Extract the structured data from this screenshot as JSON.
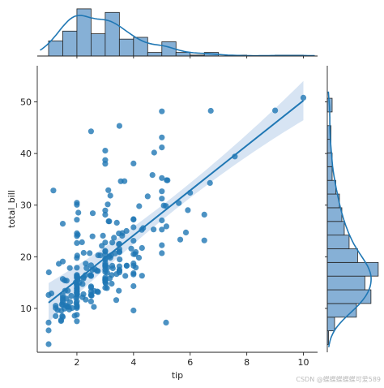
{
  "chart_data": {
    "type": "scatter",
    "title": "",
    "xlabel": "tip",
    "ylabel": "total_bill",
    "xlim": [
      0.6,
      10.5
    ],
    "ylim": [
      1.5,
      57
    ],
    "xticks": [
      2,
      4,
      6,
      8,
      10
    ],
    "yticks": [
      10,
      20,
      30,
      40,
      50
    ],
    "grid": false,
    "colors": {
      "point": "#1f77b4",
      "hist_fill": "#86b0d6",
      "line": "#1f77b4",
      "band": "#c6d9ee"
    },
    "regression": {
      "slope": 4.35,
      "intercept": 6.75,
      "x_range": [
        1,
        10
      ],
      "ci_half_width_at_ends": 3.8,
      "ci_half_width_center": 1.4
    },
    "points": [
      [
        1.01,
        16.99
      ],
      [
        1.66,
        10.34
      ],
      [
        3.5,
        21.01
      ],
      [
        3.31,
        23.68
      ],
      [
        3.61,
        24.59
      ],
      [
        4.71,
        25.29
      ],
      [
        2.0,
        8.77
      ],
      [
        3.12,
        26.88
      ],
      [
        1.96,
        15.04
      ],
      [
        3.23,
        14.78
      ],
      [
        1.71,
        10.27
      ],
      [
        5.0,
        35.26
      ],
      [
        1.57,
        15.42
      ],
      [
        3.0,
        18.43
      ],
      [
        3.02,
        14.83
      ],
      [
        3.92,
        21.58
      ],
      [
        1.67,
        10.33
      ],
      [
        3.71,
        16.29
      ],
      [
        3.5,
        16.97
      ],
      [
        3.35,
        20.65
      ],
      [
        4.08,
        17.92
      ],
      [
        2.75,
        20.29
      ],
      [
        2.23,
        15.77
      ],
      [
        7.58,
        39.42
      ],
      [
        3.18,
        19.82
      ],
      [
        2.34,
        17.81
      ],
      [
        2.0,
        13.37
      ],
      [
        2.0,
        12.69
      ],
      [
        4.3,
        21.7
      ],
      [
        3.0,
        19.65
      ],
      [
        1.45,
        9.55
      ],
      [
        2.5,
        18.35
      ],
      [
        3.0,
        15.06
      ],
      [
        2.45,
        20.69
      ],
      [
        3.27,
        17.78
      ],
      [
        3.6,
        24.06
      ],
      [
        2.0,
        16.31
      ],
      [
        3.07,
        16.93
      ],
      [
        2.31,
        18.69
      ],
      [
        5.0,
        31.27
      ],
      [
        2.24,
        16.04
      ],
      [
        2.54,
        17.46
      ],
      [
        3.06,
        13.94
      ],
      [
        1.32,
        9.68
      ],
      [
        5.6,
        30.4
      ],
      [
        3.0,
        18.29
      ],
      [
        5.0,
        22.23
      ],
      [
        6.0,
        32.4
      ],
      [
        2.05,
        28.55
      ],
      [
        3.0,
        18.04
      ],
      [
        2.5,
        12.54
      ],
      [
        2.6,
        10.29
      ],
      [
        5.2,
        34.81
      ],
      [
        1.56,
        9.94
      ],
      [
        4.34,
        25.56
      ],
      [
        3.51,
        19.49
      ],
      [
        3.0,
        38.01
      ],
      [
        1.5,
        26.41
      ],
      [
        1.76,
        11.24
      ],
      [
        6.73,
        48.27
      ],
      [
        3.21,
        20.29
      ],
      [
        2.0,
        13.81
      ],
      [
        1.98,
        11.02
      ],
      [
        3.76,
        18.29
      ],
      [
        2.64,
        17.59
      ],
      [
        3.15,
        20.08
      ],
      [
        2.47,
        16.45
      ],
      [
        1.0,
        3.07
      ],
      [
        2.01,
        20.23
      ],
      [
        2.09,
        15.01
      ],
      [
        1.97,
        12.02
      ],
      [
        3.0,
        17.07
      ],
      [
        3.14,
        26.86
      ],
      [
        5.0,
        25.28
      ],
      [
        2.2,
        14.73
      ],
      [
        1.25,
        10.51
      ],
      [
        3.08,
        17.92
      ],
      [
        4.0,
        27.2
      ],
      [
        3.0,
        22.76
      ],
      [
        2.71,
        17.29
      ],
      [
        3.0,
        19.44
      ],
      [
        3.4,
        16.66
      ],
      [
        1.83,
        10.07
      ],
      [
        5.0,
        32.68
      ],
      [
        2.03,
        15.98
      ],
      [
        5.17,
        34.83
      ],
      [
        2.0,
        13.03
      ],
      [
        4.0,
        18.28
      ],
      [
        5.85,
        24.71
      ],
      [
        3.0,
        21.16
      ],
      [
        3.0,
        28.97
      ],
      [
        3.5,
        22.49
      ],
      [
        1.0,
        5.75
      ],
      [
        4.3,
        16.32
      ],
      [
        3.25,
        22.75
      ],
      [
        4.73,
        40.17
      ],
      [
        4.0,
        27.28
      ],
      [
        1.5,
        12.03
      ],
      [
        3.0,
        21.01
      ],
      [
        1.5,
        12.46
      ],
      [
        2.5,
        11.35
      ],
      [
        3.0,
        15.38
      ],
      [
        2.5,
        44.3
      ],
      [
        3.48,
        22.42
      ],
      [
        4.08,
        20.92
      ],
      [
        1.64,
        15.36
      ],
      [
        4.06,
        20.49
      ],
      [
        4.29,
        25.21
      ],
      [
        3.76,
        18.24
      ],
      [
        4.0,
        14.31
      ],
      [
        3.0,
        14.0
      ],
      [
        1.0,
        7.25
      ],
      [
        4.0,
        38.07
      ],
      [
        2.55,
        23.95
      ],
      [
        4.0,
        25.71
      ],
      [
        3.5,
        17.31
      ],
      [
        5.07,
        29.93
      ],
      [
        1.5,
        10.65
      ],
      [
        1.8,
        12.43
      ],
      [
        2.92,
        24.08
      ],
      [
        2.31,
        11.69
      ],
      [
        1.68,
        13.42
      ],
      [
        2.5,
        14.26
      ],
      [
        2.0,
        15.95
      ],
      [
        2.52,
        12.48
      ],
      [
        4.2,
        29.8
      ],
      [
        1.48,
        8.52
      ],
      [
        2.0,
        14.52
      ],
      [
        2.0,
        11.38
      ],
      [
        2.18,
        22.82
      ],
      [
        1.5,
        19.08
      ],
      [
        2.83,
        20.27
      ],
      [
        1.5,
        11.17
      ],
      [
        2.0,
        12.26
      ],
      [
        3.25,
        18.26
      ],
      [
        1.25,
        8.51
      ],
      [
        2.0,
        10.33
      ],
      [
        2.0,
        14.15
      ],
      [
        2.0,
        16.0
      ],
      [
        2.75,
        13.16
      ],
      [
        3.5,
        17.47
      ],
      [
        6.7,
        34.3
      ],
      [
        5.0,
        41.19
      ],
      [
        5.0,
        27.05
      ],
      [
        2.3,
        16.43
      ],
      [
        1.5,
        8.35
      ],
      [
        1.36,
        18.64
      ],
      [
        1.63,
        11.87
      ],
      [
        1.73,
        9.78
      ],
      [
        2.0,
        7.51
      ],
      [
        2.5,
        14.07
      ],
      [
        2.0,
        13.13
      ],
      [
        2.74,
        17.26
      ],
      [
        2.0,
        24.55
      ],
      [
        2.0,
        19.77
      ],
      [
        5.14,
        29.85
      ],
      [
        5.0,
        48.17
      ],
      [
        3.75,
        25.0
      ],
      [
        2.61,
        13.39
      ],
      [
        2.0,
        16.49
      ],
      [
        3.5,
        21.5
      ],
      [
        2.5,
        12.66
      ],
      [
        2.0,
        16.21
      ],
      [
        2.0,
        13.81
      ],
      [
        3.0,
        17.51
      ],
      [
        3.48,
        24.52
      ],
      [
        2.24,
        20.76
      ],
      [
        4.5,
        31.71
      ],
      [
        1.61,
        10.59
      ],
      [
        2.0,
        10.63
      ],
      [
        10.0,
        50.81
      ],
      [
        3.16,
        15.81
      ],
      [
        5.15,
        7.25
      ],
      [
        3.18,
        31.85
      ],
      [
        4.0,
        16.82
      ],
      [
        3.11,
        32.9
      ],
      [
        2.0,
        17.89
      ],
      [
        2.0,
        14.48
      ],
      [
        4.0,
        9.6
      ],
      [
        3.55,
        34.63
      ],
      [
        3.68,
        34.65
      ],
      [
        5.65,
        23.33
      ],
      [
        3.5,
        45.35
      ],
      [
        6.5,
        23.17
      ],
      [
        3.0,
        40.55
      ],
      [
        5.0,
        20.69
      ],
      [
        3.5,
        20.9
      ],
      [
        2.0,
        30.46
      ],
      [
        3.5,
        18.15
      ],
      [
        4.0,
        23.1
      ],
      [
        1.5,
        15.69
      ],
      [
        4.19,
        19.81
      ],
      [
        2.56,
        28.44
      ],
      [
        2.02,
        15.48
      ],
      [
        4.0,
        16.58
      ],
      [
        1.44,
        7.56
      ],
      [
        2.0,
        10.34
      ],
      [
        5.0,
        43.11
      ],
      [
        2.0,
        13.0
      ],
      [
        2.0,
        13.51
      ],
      [
        4.0,
        18.71
      ],
      [
        2.01,
        12.74
      ],
      [
        2.0,
        13.0
      ],
      [
        2.5,
        16.4
      ],
      [
        4.0,
        20.53
      ],
      [
        3.23,
        16.47
      ],
      [
        3.41,
        26.59
      ],
      [
        3.0,
        38.73
      ],
      [
        2.03,
        24.27
      ],
      [
        2.23,
        12.76
      ],
      [
        2.0,
        30.06
      ],
      [
        5.16,
        25.89
      ],
      [
        9.0,
        48.33
      ],
      [
        2.5,
        13.27
      ],
      [
        6.5,
        28.17
      ],
      [
        1.1,
        12.9
      ],
      [
        3.0,
        28.15
      ],
      [
        1.5,
        11.59
      ],
      [
        1.44,
        7.74
      ],
      [
        3.09,
        30.14
      ],
      [
        2.2,
        12.16
      ],
      [
        3.48,
        13.42
      ],
      [
        1.92,
        8.58
      ],
      [
        3.0,
        15.98
      ],
      [
        1.58,
        13.42
      ],
      [
        2.5,
        16.27
      ],
      [
        2.0,
        10.09
      ],
      [
        3.0,
        20.45
      ],
      [
        2.72,
        13.28
      ],
      [
        2.88,
        22.12
      ],
      [
        2.0,
        24.01
      ],
      [
        3.0,
        15.69
      ],
      [
        3.39,
        11.61
      ],
      [
        1.47,
        10.77
      ],
      [
        3.0,
        15.53
      ],
      [
        1.25,
        10.07
      ],
      [
        1.0,
        12.6
      ],
      [
        1.17,
        32.83
      ],
      [
        4.67,
        35.83
      ],
      [
        5.92,
        29.03
      ],
      [
        2.0,
        27.18
      ],
      [
        2.0,
        22.67
      ],
      [
        1.75,
        17.82
      ],
      [
        3.0,
        18.78
      ]
    ]
  },
  "watermark": "CSDN @蝶蝶蝶蝶蝶可爱589"
}
